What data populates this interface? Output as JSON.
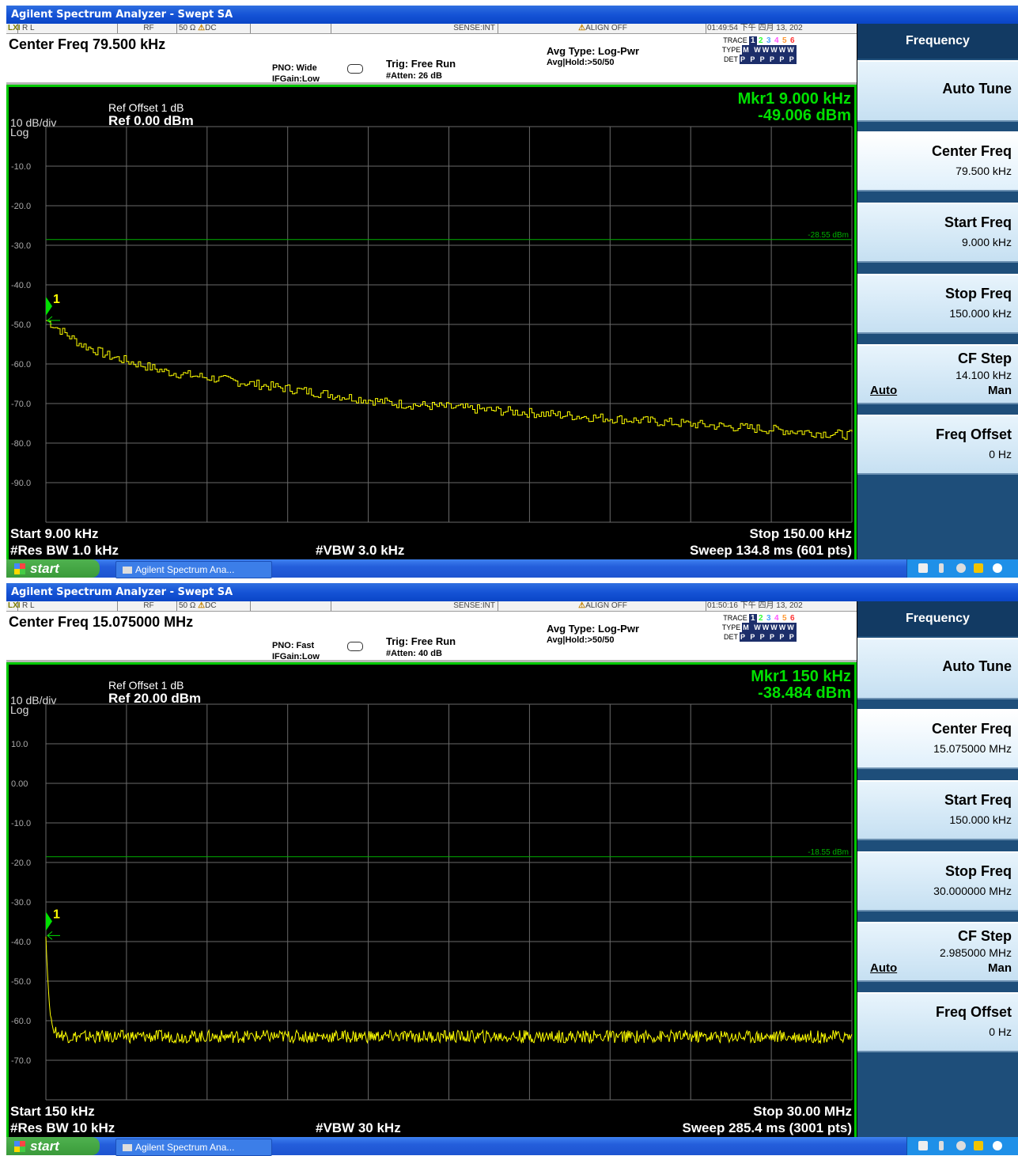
{
  "windows": [
    {
      "title": "Agilent Spectrum Analyzer - Swept SA",
      "status": {
        "rl": "R L",
        "rf": "RF",
        "imp": "50 Ω",
        "dc": "DC",
        "sense": "SENSE:INT",
        "align": "ALIGN OFF",
        "time": "01:49:54 下午 四月 13, 202"
      },
      "center_freq": "Center Freq 79.500 kHz",
      "pno": "PNO: Wide",
      "ifgain": "IFGain:Low",
      "trig": "Trig: Free Run",
      "atten": "#Atten: 26 dB",
      "avg_type": "Avg Type: Log-Pwr",
      "avg_hold": "Avg|Hold:>50/50",
      "trace_label": "TRACE",
      "type_label": "TYPE",
      "det_label": "DET",
      "trace_nums": [
        "1",
        "2",
        "3",
        "4",
        "5",
        "6"
      ],
      "type_val": "M WWWWW",
      "det_val": "P P P P P P",
      "ref_offset": "Ref Offset 1 dB",
      "ref": "Ref 0.00 dBm",
      "scale": "10 dB/div",
      "log": "Log",
      "marker_freq": "Mkr1 9.000 kHz",
      "marker_amp": "-49.006 dBm",
      "marker_num": "1",
      "display_line": "-28.55 dBm",
      "start": "Start 9.00 kHz",
      "stop": "Stop 150.00 kHz",
      "rbw": "#Res BW 1.0 kHz",
      "vbw": "#VBW 3.0 kHz",
      "sweep": "Sweep  134.8 ms (601 pts)",
      "y_labels": [
        "-10.0",
        "-20.0",
        "-30.0",
        "-40.0",
        "-50.0",
        "-60.0",
        "-70.0",
        "-80.0",
        "-90.0"
      ],
      "softkeys": {
        "title": "Frequency",
        "auto_tune": "Auto Tune",
        "center": {
          "label": "Center Freq",
          "value": "79.500 kHz"
        },
        "start": {
          "label": "Start Freq",
          "value": "9.000 kHz"
        },
        "stop": {
          "label": "Stop Freq",
          "value": "150.000 kHz"
        },
        "cf_step": {
          "label": "CF Step",
          "value": "14.100 kHz",
          "auto": "Auto",
          "man": "Man"
        },
        "offset": {
          "label": "Freq Offset",
          "value": "0 Hz"
        }
      },
      "taskbar": {
        "start": "start",
        "item": "Agilent Spectrum Ana..."
      }
    },
    {
      "title": "Agilent Spectrum Analyzer - Swept SA",
      "status": {
        "rl": "R L",
        "rf": "RF",
        "imp": "50 Ω",
        "dc": "DC",
        "sense": "SENSE:INT",
        "align": "ALIGN OFF",
        "time": "01:50:16 下午 四月 13, 202"
      },
      "center_freq": "Center Freq 15.075000 MHz",
      "pno": "PNO: Fast",
      "ifgain": "IFGain:Low",
      "trig": "Trig: Free Run",
      "atten": "#Atten: 40 dB",
      "avg_type": "Avg Type: Log-Pwr",
      "avg_hold": "Avg|Hold:>50/50",
      "trace_label": "TRACE",
      "type_label": "TYPE",
      "det_label": "DET",
      "trace_nums": [
        "1",
        "2",
        "3",
        "4",
        "5",
        "6"
      ],
      "type_val": "M WWWWW",
      "det_val": "P P P P P P",
      "ref_offset": "Ref Offset 1 dB",
      "ref": "Ref 20.00 dBm",
      "scale": "10 dB/div",
      "log": "Log",
      "marker_freq": "Mkr1 150 kHz",
      "marker_amp": "-38.484 dBm",
      "marker_num": "1",
      "display_line": "-18.55 dBm",
      "start": "Start 150 kHz",
      "stop": "Stop 30.00 MHz",
      "rbw": "#Res BW 10 kHz",
      "vbw": "#VBW 30 kHz",
      "sweep": "Sweep  285.4 ms (3001 pts)",
      "y_labels": [
        "10.0",
        "0.00",
        "-10.0",
        "-20.0",
        "-30.0",
        "-40.0",
        "-50.0",
        "-60.0",
        "-70.0"
      ],
      "softkeys": {
        "title": "Frequency",
        "auto_tune": "Auto Tune",
        "center": {
          "label": "Center Freq",
          "value": "15.075000 MHz"
        },
        "start": {
          "label": "Start Freq",
          "value": "150.000 kHz"
        },
        "stop": {
          "label": "Stop Freq",
          "value": "30.000000 MHz"
        },
        "cf_step": {
          "label": "CF Step",
          "value": "2.985000 MHz",
          "auto": "Auto",
          "man": "Man"
        },
        "offset": {
          "label": "Freq Offset",
          "value": "0 Hz"
        }
      },
      "taskbar": {
        "start": "start",
        "item": "Agilent Spectrum Ana..."
      }
    }
  ],
  "chart_data": [
    {
      "type": "line",
      "xlabel": "",
      "ylabel": "",
      "x_unit": "kHz",
      "y_unit": "dBm",
      "xlim": [
        9,
        150
      ],
      "ylim": [
        -100,
        0
      ],
      "grid": true,
      "display_line": -28.55,
      "marker": {
        "x": 9.0,
        "y": -49.006
      },
      "series": [
        {
          "x": [
            9,
            12,
            15,
            20,
            25,
            30,
            40,
            50,
            60,
            70,
            80,
            90,
            100,
            110,
            120,
            130,
            140,
            150
          ],
          "y": [
            -49,
            -52,
            -55,
            -58,
            -60,
            -62,
            -64,
            -66,
            -68,
            -70,
            -71,
            -72,
            -73,
            -74,
            -75,
            -76,
            -77,
            -78
          ]
        }
      ]
    },
    {
      "type": "line",
      "xlabel": "",
      "ylabel": "",
      "x_unit": "MHz",
      "y_unit": "dBm",
      "xlim": [
        0.15,
        30
      ],
      "ylim": [
        -80,
        20
      ],
      "grid": true,
      "display_line": -18.55,
      "marker": {
        "x": 0.15,
        "y": -38.484
      },
      "series": [
        {
          "x": [
            0.15,
            0.2,
            0.3,
            0.45,
            1,
            5,
            10,
            15,
            20,
            25,
            30
          ],
          "y": [
            -38.5,
            -47,
            -58,
            -63,
            -64,
            -64,
            -64,
            -64,
            -64,
            -64,
            -64
          ]
        }
      ]
    }
  ]
}
